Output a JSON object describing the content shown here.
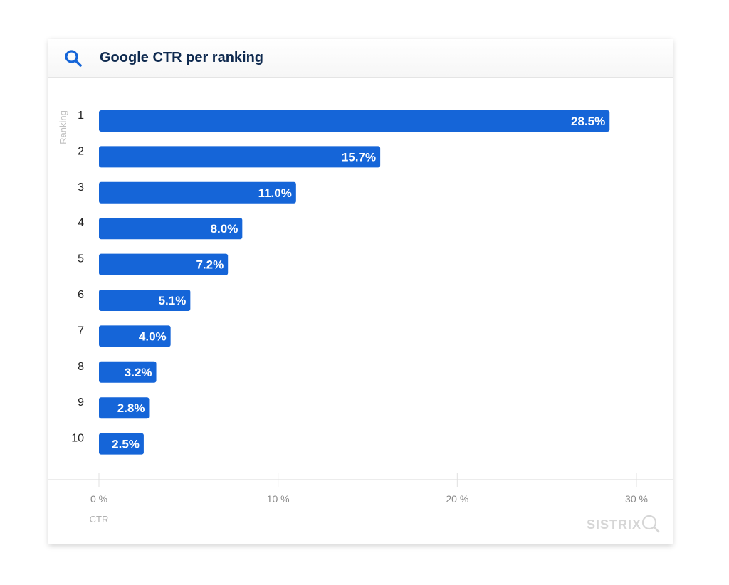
{
  "header": {
    "title": "Google CTR per ranking",
    "icon": "search-icon"
  },
  "watermark": "SISTRIX",
  "chart_data": {
    "type": "bar",
    "orientation": "horizontal",
    "title": "Google CTR per ranking",
    "xlabel": "CTR",
    "ylabel": "Ranking",
    "categories": [
      "1",
      "2",
      "3",
      "4",
      "5",
      "6",
      "7",
      "8",
      "9",
      "10"
    ],
    "values": [
      28.5,
      15.7,
      11.0,
      8.0,
      7.2,
      5.1,
      4.0,
      3.2,
      2.8,
      2.5
    ],
    "data_labels": [
      "28.5%",
      "15.7%",
      "11.0%",
      "8.0%",
      "7.2%",
      "5.1%",
      "4.0%",
      "3.2%",
      "2.8%",
      "2.5%"
    ],
    "xlim": [
      0,
      30
    ],
    "xticks": [
      0,
      10,
      20,
      30
    ],
    "xtick_labels": [
      "0 %",
      "10 %",
      "20 %",
      "30 %"
    ],
    "grid": false,
    "bar_color": "#1565d8"
  }
}
